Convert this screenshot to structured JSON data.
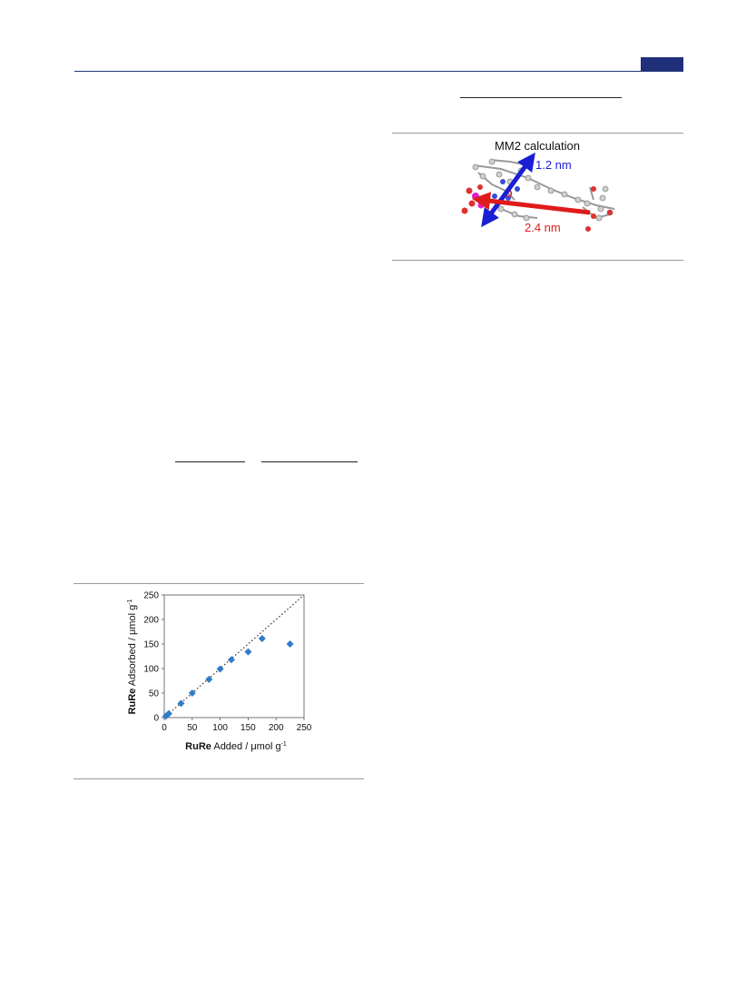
{
  "figure_mm2": {
    "title": "MM2 calculation",
    "label_short": "1.2 nm",
    "label_long": "2.4 nm",
    "color_short": "#1a1fd6",
    "color_long": "#e01b1b"
  },
  "chart_data": {
    "type": "scatter",
    "xlabel_bold": "RuRe",
    "xlabel_rest": " Added / μmol g",
    "xlabel_sup": "-1",
    "ylabel_bold": "RuRe",
    "ylabel_rest": " Adsorbed / μmol g",
    "ylabel_sup": "-1",
    "xlim": [
      0,
      250
    ],
    "ylim": [
      0,
      250
    ],
    "xticks": [
      "0",
      "50",
      "100",
      "150",
      "200",
      "250"
    ],
    "yticks": [
      "0",
      "50",
      "100",
      "150",
      "200",
      "250"
    ],
    "series": [
      {
        "marker": "diamond",
        "color": "#2f7cc9",
        "points": [
          [
            3,
            3
          ],
          [
            8,
            8
          ],
          [
            30,
            29
          ],
          [
            50,
            50
          ],
          [
            80,
            78
          ],
          [
            100,
            99
          ],
          [
            120,
            118
          ],
          [
            150,
            134
          ],
          [
            175,
            161
          ],
          [
            225,
            150
          ]
        ]
      }
    ],
    "reference_line": {
      "style": "dotted",
      "from": [
        0,
        0
      ],
      "to": [
        250,
        250
      ]
    }
  }
}
